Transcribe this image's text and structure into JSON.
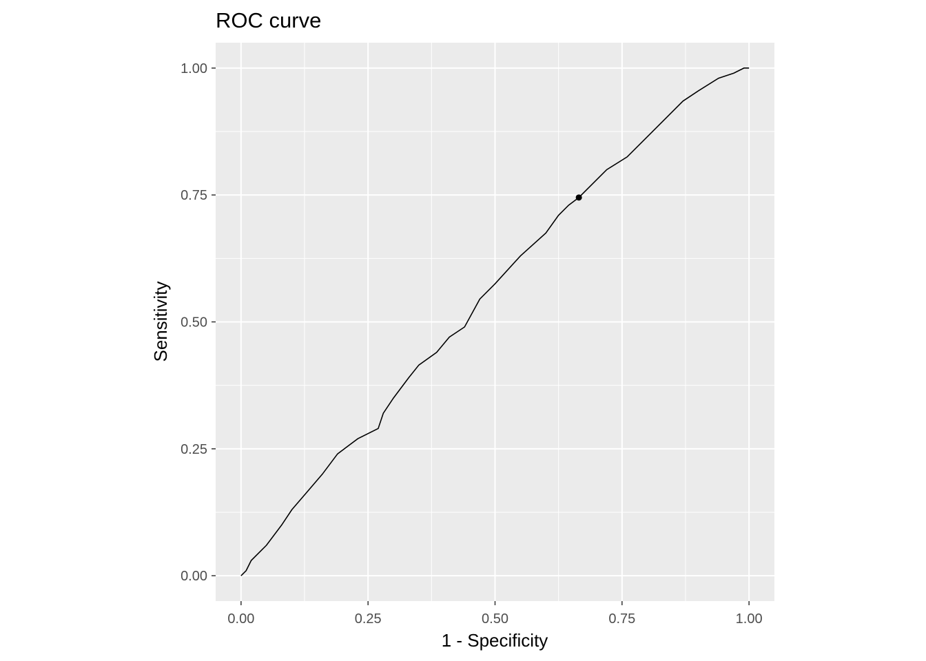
{
  "chart_data": {
    "type": "line",
    "title": "ROC curve",
    "xlabel": "1 - Specificity",
    "ylabel": "Sensitivity",
    "xlim": [
      -0.05,
      1.05
    ],
    "ylim": [
      -0.05,
      1.05
    ],
    "x_ticks": [
      0.0,
      0.25,
      0.5,
      0.75,
      1.0
    ],
    "y_ticks": [
      0.0,
      0.25,
      0.5,
      0.75,
      1.0
    ],
    "x_tick_labels": [
      "0.00",
      "0.25",
      "0.50",
      "0.75",
      "1.00"
    ],
    "y_tick_labels": [
      "0.00",
      "0.25",
      "0.50",
      "0.75",
      "1.00"
    ],
    "grid": true,
    "panel_background": "#ebebeb",
    "grid_color": "#ffffff",
    "line_color": "#000000",
    "series": [
      {
        "x": [
          0.0,
          0.01,
          0.02,
          0.05,
          0.08,
          0.1,
          0.13,
          0.16,
          0.19,
          0.23,
          0.27,
          0.28,
          0.3,
          0.33,
          0.35,
          0.385,
          0.41,
          0.44,
          0.47,
          0.5,
          0.55,
          0.6,
          0.625,
          0.645,
          0.665,
          0.69,
          0.72,
          0.76,
          0.79,
          0.84,
          0.87,
          0.9,
          0.94,
          0.97,
          0.99,
          1.0
        ],
        "y": [
          0.0,
          0.01,
          0.03,
          0.06,
          0.1,
          0.13,
          0.165,
          0.2,
          0.24,
          0.27,
          0.29,
          0.32,
          0.35,
          0.39,
          0.415,
          0.44,
          0.47,
          0.49,
          0.545,
          0.575,
          0.63,
          0.675,
          0.71,
          0.73,
          0.745,
          0.77,
          0.8,
          0.825,
          0.855,
          0.905,
          0.935,
          0.955,
          0.98,
          0.99,
          1.0,
          1.0
        ]
      }
    ],
    "marked_point": {
      "x": 0.665,
      "y": 0.745
    }
  }
}
